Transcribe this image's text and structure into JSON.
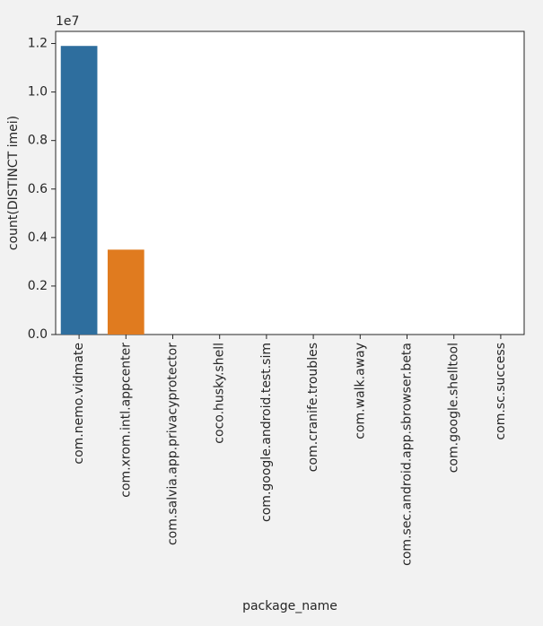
{
  "chart_data": {
    "type": "bar",
    "xlabel": "package_name",
    "ylabel": "count(DISTINCT imei)",
    "offset_label": "1e7",
    "categories": [
      "com.nemo.vidmate",
      "com.xrom.intl.appcenter",
      "com.salvia.app.privacyprotector",
      "coco.husky.shell",
      "com.google.android.test.sim",
      "com.cranife.troubles",
      "com.walk.away",
      "com.sec.android.app.sbrowser.beta",
      "com.google.shelltool",
      "com.sc.success"
    ],
    "values": [
      11900000,
      3500000,
      0,
      0,
      0,
      0,
      0,
      0,
      0,
      0
    ],
    "colors": [
      "#2e6e9e",
      "#e07b1f",
      "#3a923a",
      "#c03d3e",
      "#9372b2",
      "#845b53",
      "#d684bd",
      "#7f7f7f",
      "#a9aa35",
      "#2ea8b6"
    ],
    "ylim": [
      0,
      12500000
    ],
    "yticks": [
      0,
      2000000,
      4000000,
      6000000,
      8000000,
      10000000,
      12000000
    ],
    "ytick_labels": [
      "0.0",
      "0.2",
      "0.4",
      "0.6",
      "0.8",
      "1.0",
      "1.2"
    ],
    "grid": false
  }
}
